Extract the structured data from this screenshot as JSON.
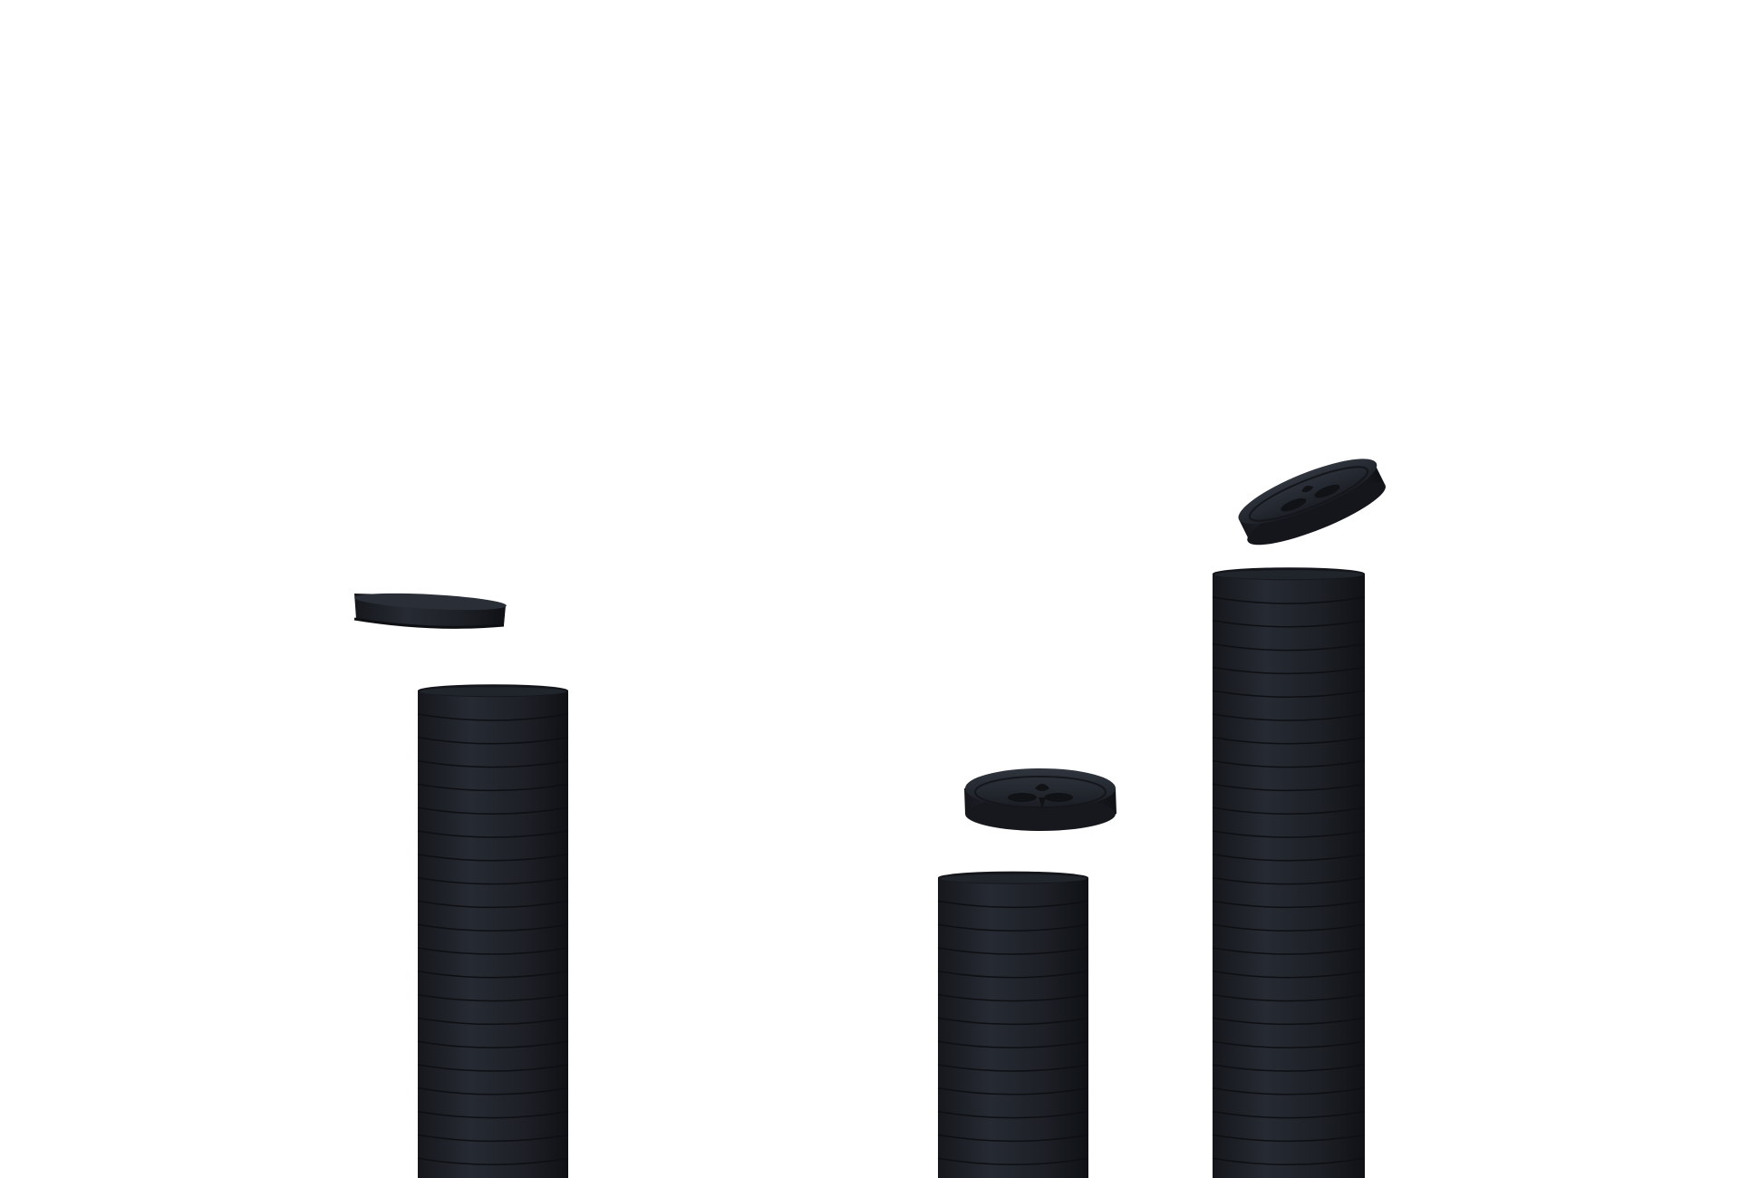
{
  "scene": {
    "background": "#ffffff",
    "coin_color": "#1b1e24",
    "coin_edge": "#0f1116",
    "coin_highlight": "#2c313a",
    "stacks": [
      {
        "name": "coin-stack-left",
        "coins": 21,
        "falling_coin": "tilted-flat"
      },
      {
        "name": "coin-stack-middle",
        "coins": 13,
        "falling_coin": "face-up"
      },
      {
        "name": "coin-stack-right",
        "coins": 26,
        "falling_coin": "steep-tilt"
      }
    ]
  }
}
